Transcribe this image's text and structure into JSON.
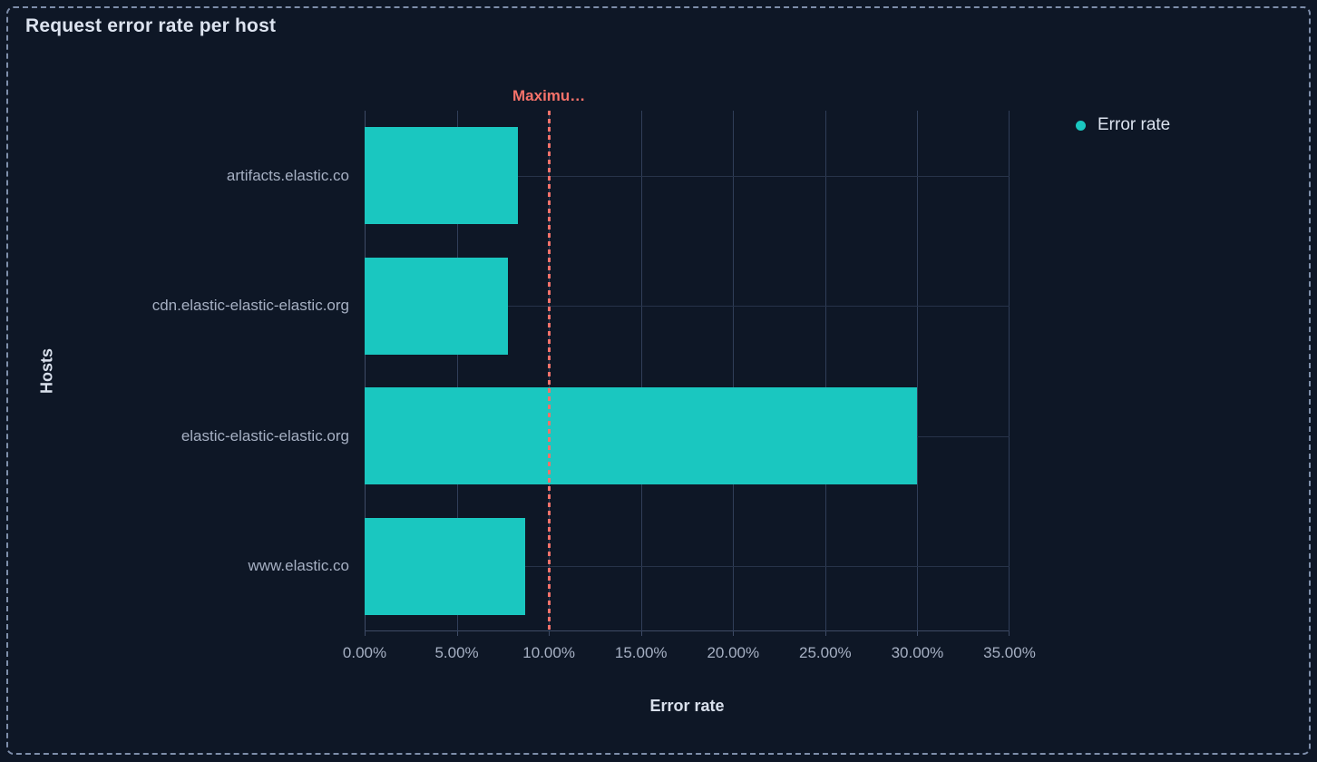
{
  "panel": {
    "title": "Request error rate per host"
  },
  "legend": {
    "position": "right",
    "items": [
      {
        "label": "Error rate",
        "color": "#1AC7C0"
      }
    ]
  },
  "chart_data": {
    "type": "bar",
    "orientation": "horizontal",
    "title": "Request error rate per host",
    "categories": [
      "artifacts.elastic.co",
      "cdn.elastic-elastic-elastic.org",
      "elastic-elastic-elastic.org",
      "www.elastic.co"
    ],
    "series": [
      {
        "name": "Error rate",
        "color": "#1AC7C0",
        "values": [
          8.3,
          7.8,
          30,
          8.7
        ]
      }
    ],
    "value_unit": "percent",
    "xlabel": "Error rate",
    "ylabel": "Hosts",
    "xlim": [
      0,
      35
    ],
    "x_tick_values": [
      0,
      5,
      10,
      15,
      20,
      25,
      30,
      35
    ],
    "x_ticks": [
      "0.00%",
      "5.00%",
      "10.00%",
      "15.00%",
      "20.00%",
      "25.00%",
      "30.00%",
      "35.00%"
    ],
    "grid": true,
    "legend_position": "right",
    "threshold": {
      "label": "Maximu…",
      "value": 10,
      "color": "#F6726A",
      "style": "dashed"
    }
  },
  "colors": {
    "background": "#0E1726",
    "panel_border": "#92A4C2",
    "bar": "#1AC7C0",
    "threshold": "#F6726A",
    "grid_vertical": "#303E58",
    "grid_horizontal": "#273349",
    "axis_line": "#3E4B66",
    "text_primary": "#DCE3EF",
    "text_muted": "#A6B0C3"
  }
}
